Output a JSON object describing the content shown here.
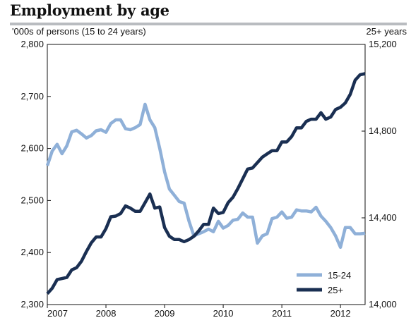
{
  "chart_data": {
    "type": "line",
    "title": "Employment by age",
    "left_axis_label": "'000s of persons (15 to 24 years)",
    "right_axis_label": "25+ years",
    "x_ticks": [
      "2007",
      "2008",
      "2009",
      "2010",
      "2011",
      "2012"
    ],
    "xlim": [
      2007.0,
      2012.42
    ],
    "left_ylim": [
      2300,
      2800
    ],
    "left_yticks": [
      "2,300",
      "2,400",
      "2,500",
      "2,600",
      "2,700",
      "2,800"
    ],
    "right_ylim": [
      14000,
      15200
    ],
    "right_yticks": [
      "14,000",
      "14,400",
      "14,800",
      "15,200"
    ],
    "grid": false,
    "legend_position": "bottom-right",
    "series": [
      {
        "name": "15-24",
        "axis": "left",
        "color": "#8fb0d8",
        "x": [
          2007.0,
          2007.083,
          2007.167,
          2007.25,
          2007.333,
          2007.417,
          2007.5,
          2007.583,
          2007.667,
          2007.75,
          2007.833,
          2007.917,
          2008.0,
          2008.083,
          2008.167,
          2008.25,
          2008.333,
          2008.417,
          2008.5,
          2008.583,
          2008.667,
          2008.75,
          2008.833,
          2008.917,
          2009.0,
          2009.083,
          2009.167,
          2009.25,
          2009.333,
          2009.417,
          2009.5,
          2009.583,
          2009.667,
          2009.75,
          2009.833,
          2009.917,
          2010.0,
          2010.083,
          2010.167,
          2010.25,
          2010.333,
          2010.417,
          2010.5,
          2010.583,
          2010.667,
          2010.75,
          2010.833,
          2010.917,
          2011.0,
          2011.083,
          2011.167,
          2011.25,
          2011.333,
          2011.417,
          2011.5,
          2011.583,
          2011.667,
          2011.75,
          2011.833,
          2011.917,
          2012.0,
          2012.083,
          2012.167,
          2012.25,
          2012.333,
          2012.42
        ],
        "values": [
          2567,
          2595,
          2608,
          2590,
          2605,
          2632,
          2635,
          2628,
          2620,
          2625,
          2634,
          2636,
          2631,
          2648,
          2655,
          2655,
          2638,
          2636,
          2640,
          2646,
          2685,
          2655,
          2640,
          2600,
          2555,
          2522,
          2510,
          2498,
          2495,
          2460,
          2432,
          2436,
          2440,
          2445,
          2440,
          2460,
          2447,
          2452,
          2462,
          2464,
          2476,
          2468,
          2468,
          2418,
          2432,
          2436,
          2465,
          2468,
          2478,
          2466,
          2468,
          2482,
          2480,
          2480,
          2478,
          2487,
          2470,
          2460,
          2448,
          2432,
          2410,
          2448,
          2448,
          2436,
          2436,
          2437
        ]
      },
      {
        "name": "25+",
        "axis": "right",
        "color": "#1a2f52",
        "x": [
          2007.0,
          2007.083,
          2007.167,
          2007.25,
          2007.333,
          2007.417,
          2007.5,
          2007.583,
          2007.667,
          2007.75,
          2007.833,
          2007.917,
          2008.0,
          2008.083,
          2008.167,
          2008.25,
          2008.333,
          2008.417,
          2008.5,
          2008.583,
          2008.667,
          2008.75,
          2008.833,
          2008.917,
          2009.0,
          2009.083,
          2009.167,
          2009.25,
          2009.333,
          2009.417,
          2009.5,
          2009.583,
          2009.667,
          2009.75,
          2009.833,
          2009.917,
          2010.0,
          2010.083,
          2010.167,
          2010.25,
          2010.333,
          2010.417,
          2010.5,
          2010.583,
          2010.667,
          2010.75,
          2010.833,
          2010.917,
          2011.0,
          2011.083,
          2011.167,
          2011.25,
          2011.333,
          2011.417,
          2011.5,
          2011.583,
          2011.667,
          2011.75,
          2011.833,
          2011.917,
          2012.0,
          2012.083,
          2012.167,
          2012.25,
          2012.333,
          2012.42
        ],
        "values": [
          14050,
          14075,
          14115,
          14120,
          14125,
          14160,
          14170,
          14200,
          14245,
          14285,
          14312,
          14312,
          14350,
          14405,
          14408,
          14420,
          14455,
          14445,
          14430,
          14430,
          14470,
          14510,
          14445,
          14450,
          14355,
          14315,
          14300,
          14300,
          14290,
          14300,
          14315,
          14340,
          14370,
          14370,
          14445,
          14420,
          14425,
          14470,
          14495,
          14535,
          14580,
          14625,
          14630,
          14655,
          14680,
          14695,
          14710,
          14710,
          14750,
          14750,
          14775,
          14815,
          14815,
          14845,
          14855,
          14855,
          14885,
          14855,
          14865,
          14900,
          14910,
          14930,
          14970,
          15035,
          15060,
          15065
        ]
      }
    ]
  }
}
